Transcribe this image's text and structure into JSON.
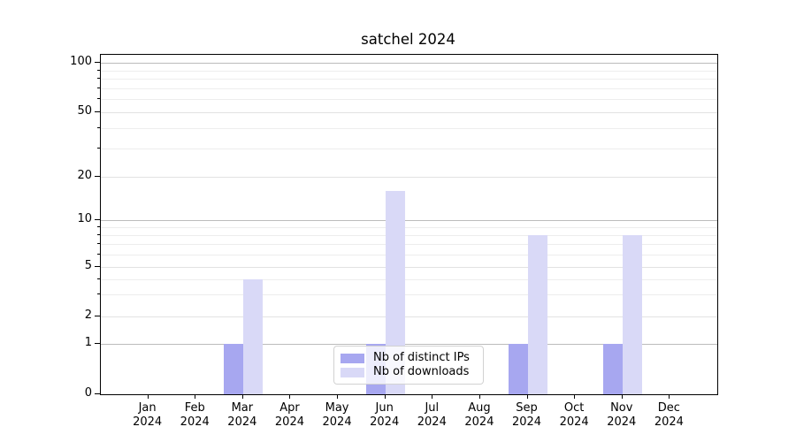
{
  "title": "satchel 2024",
  "colors": {
    "distinct_ips": "#a7a7f0",
    "downloads": "#d9d9f7",
    "grid_major": "#bcbcbc",
    "grid_mid": "#e2e2e2",
    "grid_minor": "#ededed",
    "axis": "#000000"
  },
  "legend": {
    "items": [
      "Nb of distinct IPs",
      "Nb of downloads"
    ]
  },
  "x_axis": {
    "months": [
      "Jan",
      "Feb",
      "Mar",
      "Apr",
      "May",
      "Jun",
      "Jul",
      "Aug",
      "Sep",
      "Oct",
      "Nov",
      "Dec"
    ],
    "year": "2024"
  },
  "y_axis": {
    "tick_labels": [
      "0",
      "1",
      "2",
      "5",
      "10",
      "20",
      "50",
      "100"
    ]
  },
  "chart_data": {
    "type": "bar",
    "title": "satchel 2024",
    "categories": [
      "Jan 2024",
      "Feb 2024",
      "Mar 2024",
      "Apr 2024",
      "May 2024",
      "Jun 2024",
      "Jul 2024",
      "Aug 2024",
      "Sep 2024",
      "Oct 2024",
      "Nov 2024",
      "Dec 2024"
    ],
    "series": [
      {
        "name": "Nb of distinct IPs",
        "color": "#a7a7f0",
        "values": [
          0,
          0,
          1,
          0,
          0,
          1,
          0,
          0,
          1,
          0,
          1,
          0
        ]
      },
      {
        "name": "Nb of downloads",
        "color": "#d9d9f7",
        "values": [
          0,
          0,
          4,
          0,
          0,
          16,
          0,
          0,
          8,
          0,
          8,
          0
        ]
      }
    ],
    "xlabel": "",
    "ylabel": "",
    "y_scale": "symlog",
    "y_ticks_labeled": [
      0,
      1,
      2,
      5,
      10,
      20,
      50,
      100
    ],
    "y_ticks_minor": [
      3,
      4,
      6,
      7,
      8,
      9,
      30,
      40,
      60,
      70,
      80,
      90
    ],
    "ylim": [
      0,
      110
    ],
    "grid": "horizontal",
    "legend_position": "lower center"
  }
}
